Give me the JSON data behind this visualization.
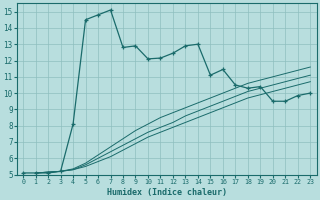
{
  "xlabel": "Humidex (Indice chaleur)",
  "xlim": [
    -0.5,
    23.5
  ],
  "ylim": [
    5,
    15.5
  ],
  "xticks": [
    0,
    1,
    2,
    3,
    4,
    5,
    6,
    7,
    8,
    9,
    10,
    11,
    12,
    13,
    14,
    15,
    16,
    17,
    18,
    19,
    20,
    21,
    22,
    23
  ],
  "yticks": [
    5,
    6,
    7,
    8,
    9,
    10,
    11,
    12,
    13,
    14,
    15
  ],
  "bg_color": "#b8dede",
  "line_color": "#1a6b6b",
  "grid_color": "#8fbfbf",
  "line1_x": [
    1,
    2,
    3,
    4,
    5,
    6,
    7,
    8,
    9,
    10,
    11,
    12,
    13,
    14,
    15,
    16,
    17,
    18,
    19,
    20,
    21,
    22,
    23
  ],
  "line1_y": [
    5.1,
    5.15,
    5.2,
    5.3,
    5.5,
    5.8,
    6.1,
    6.5,
    6.9,
    7.3,
    7.6,
    7.9,
    8.2,
    8.5,
    8.8,
    9.1,
    9.4,
    9.7,
    9.9,
    10.1,
    10.3,
    10.5,
    10.7
  ],
  "line2_x": [
    1,
    2,
    3,
    4,
    5,
    6,
    7,
    8,
    9,
    10,
    11,
    12,
    13,
    14,
    15,
    16,
    17,
    18,
    19,
    20,
    21,
    22,
    23
  ],
  "line2_y": [
    5.1,
    5.15,
    5.2,
    5.3,
    5.6,
    6.0,
    6.4,
    6.8,
    7.2,
    7.6,
    7.9,
    8.2,
    8.6,
    8.9,
    9.2,
    9.5,
    9.8,
    10.1,
    10.3,
    10.5,
    10.7,
    10.9,
    11.1
  ],
  "line3_x": [
    1,
    2,
    3,
    4,
    5,
    6,
    7,
    8,
    9,
    10,
    11,
    12,
    13,
    14,
    15,
    16,
    17,
    18,
    19,
    20,
    21,
    22,
    23
  ],
  "line3_y": [
    5.1,
    5.15,
    5.2,
    5.35,
    5.7,
    6.2,
    6.7,
    7.2,
    7.7,
    8.1,
    8.5,
    8.8,
    9.1,
    9.4,
    9.7,
    10.0,
    10.3,
    10.6,
    10.8,
    11.0,
    11.2,
    11.4,
    11.6
  ],
  "main_line_x": [
    0,
    1,
    2,
    3,
    4,
    5,
    6,
    7,
    8,
    9,
    10,
    11,
    12,
    13,
    14,
    15,
    16,
    17,
    18,
    19,
    20,
    21,
    22,
    23
  ],
  "main_line_y": [
    5.1,
    5.1,
    5.1,
    5.2,
    8.1,
    14.5,
    14.8,
    15.1,
    12.8,
    12.9,
    12.1,
    12.15,
    12.45,
    12.9,
    13.0,
    11.1,
    11.45,
    10.5,
    10.3,
    10.4,
    9.5,
    9.5,
    9.85,
    10.0
  ]
}
